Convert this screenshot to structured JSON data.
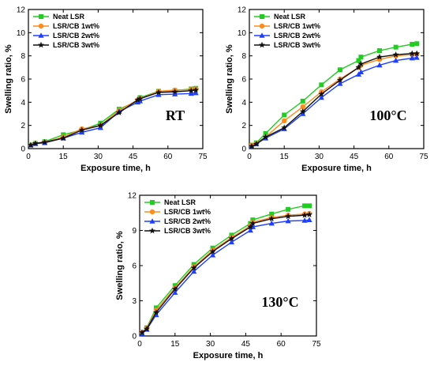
{
  "chart_data": [
    {
      "type": "line",
      "annotation": "RT",
      "xlabel": "Exposure time, h",
      "ylabel": "Swelling ratio, %",
      "xlim": [
        0,
        75
      ],
      "ylim": [
        0,
        12
      ],
      "xticks": [
        "0",
        "15",
        "30",
        "45",
        "60",
        "75"
      ],
      "yticks": [
        "0",
        "2",
        "4",
        "6",
        "8",
        "10",
        "12"
      ],
      "legend": "top-left",
      "series": [
        {
          "name": "Neat LSR",
          "color": "#22cc22",
          "marker": "square",
          "x": [
            1,
            3,
            7,
            15,
            23,
            31,
            39,
            47,
            48,
            56,
            63,
            70,
            72
          ],
          "y": [
            0.3,
            0.45,
            0.6,
            1.2,
            1.6,
            2.2,
            3.4,
            4.1,
            4.4,
            4.95,
            5.0,
            5.15,
            5.2
          ]
        },
        {
          "name": "LSR/CB 1wt%",
          "color": "#ff8c1a",
          "marker": "circle",
          "x": [
            1,
            3,
            7,
            15,
            23,
            31,
            39,
            47,
            48,
            56,
            63,
            70,
            72
          ],
          "y": [
            0.3,
            0.45,
            0.55,
            1.0,
            1.7,
            2.0,
            3.3,
            4.2,
            4.3,
            4.95,
            5.05,
            5.1,
            5.15
          ]
        },
        {
          "name": "LSR/CB 2wt%",
          "color": "#1f3fff",
          "marker": "triangle",
          "x": [
            1,
            3,
            7,
            15,
            23,
            31,
            39,
            47,
            48,
            56,
            63,
            70,
            72
          ],
          "y": [
            0.3,
            0.42,
            0.5,
            0.9,
            1.4,
            1.8,
            3.2,
            4.0,
            4.1,
            4.65,
            4.7,
            4.75,
            4.8
          ]
        },
        {
          "name": "LSR/CB 3wt%",
          "color": "#111111",
          "marker": "star",
          "x": [
            1,
            3,
            7,
            15,
            23,
            31,
            39,
            47,
            48,
            56,
            63,
            70,
            72
          ],
          "y": [
            0.3,
            0.45,
            0.55,
            0.9,
            1.6,
            2.0,
            3.1,
            4.2,
            4.3,
            4.85,
            4.9,
            5.0,
            5.05
          ]
        }
      ]
    },
    {
      "type": "line",
      "annotation": "100°C",
      "xlabel": "Exposure time, h",
      "ylabel": "Swelling ratio, %",
      "xlim": [
        0,
        75
      ],
      "ylim": [
        0,
        12
      ],
      "xticks": [
        "0",
        "15",
        "30",
        "45",
        "60",
        "75"
      ],
      "yticks": [
        "0",
        "2",
        "4",
        "6",
        "8",
        "10",
        "12"
      ],
      "legend": "top-left",
      "series": [
        {
          "name": "Neat LSR",
          "color": "#22cc22",
          "marker": "square",
          "x": [
            1,
            3,
            7,
            15,
            23,
            31,
            39,
            47,
            48,
            56,
            63,
            70,
            72
          ],
          "y": [
            0.3,
            0.5,
            1.3,
            2.9,
            4.1,
            5.5,
            6.8,
            7.6,
            7.9,
            8.45,
            8.75,
            9.0,
            9.05
          ]
        },
        {
          "name": "LSR/CB 1wt%",
          "color": "#ff8c1a",
          "marker": "circle",
          "x": [
            1,
            3,
            7,
            15,
            23,
            31,
            39,
            47,
            48,
            56,
            63,
            70,
            72
          ],
          "y": [
            0.3,
            0.45,
            1.0,
            2.4,
            3.6,
            4.9,
            6.0,
            7.0,
            7.2,
            7.7,
            8.0,
            8.1,
            8.15
          ]
        },
        {
          "name": "LSR/CB 2wt%",
          "color": "#1f3fff",
          "marker": "triangle",
          "x": [
            1,
            3,
            7,
            15,
            23,
            31,
            39,
            47,
            48,
            56,
            63,
            70,
            72
          ],
          "y": [
            0.2,
            0.4,
            0.9,
            1.7,
            3.0,
            4.4,
            5.6,
            6.4,
            6.6,
            7.2,
            7.6,
            7.8,
            7.85
          ]
        },
        {
          "name": "LSR/CB 3wt%",
          "color": "#111111",
          "marker": "star",
          "x": [
            1,
            3,
            7,
            15,
            23,
            31,
            39,
            47,
            48,
            56,
            63,
            70,
            72
          ],
          "y": [
            0.2,
            0.4,
            1.0,
            1.8,
            3.2,
            4.7,
            5.9,
            7.0,
            7.3,
            7.9,
            8.1,
            8.2,
            8.2
          ]
        }
      ]
    },
    {
      "type": "line",
      "annotation": "130°C",
      "xlabel": "Exposure time, h",
      "ylabel": "Swelling ratio, %",
      "xlim": [
        0,
        75
      ],
      "ylim": [
        0,
        12
      ],
      "xticks": [
        "0",
        "15",
        "30",
        "45",
        "60",
        "75"
      ],
      "yticks": [
        "0",
        "3",
        "6",
        "9",
        "12"
      ],
      "legend": "top-left",
      "series": [
        {
          "name": "Neat LSR",
          "color": "#22cc22",
          "marker": "square",
          "x": [
            1,
            3,
            7,
            15,
            23,
            31,
            39,
            47,
            48,
            56,
            63,
            70,
            72
          ],
          "y": [
            0.3,
            0.7,
            2.4,
            4.3,
            6.1,
            7.5,
            8.6,
            9.6,
            9.9,
            10.4,
            10.8,
            11.1,
            11.1
          ]
        },
        {
          "name": "LSR/CB 1wt%",
          "color": "#ff8c1a",
          "marker": "circle",
          "x": [
            1,
            3,
            7,
            15,
            23,
            31,
            39,
            47,
            48,
            56,
            63,
            70,
            72
          ],
          "y": [
            0.3,
            0.65,
            2.2,
            4.1,
            5.9,
            7.3,
            8.4,
            9.4,
            9.7,
            10.1,
            10.3,
            10.4,
            10.45
          ]
        },
        {
          "name": "LSR/CB 2wt%",
          "color": "#1f3fff",
          "marker": "triangle",
          "x": [
            1,
            3,
            7,
            15,
            23,
            31,
            39,
            47,
            48,
            56,
            63,
            70,
            72
          ],
          "y": [
            0.2,
            0.55,
            1.8,
            3.7,
            5.5,
            6.9,
            8.0,
            9.0,
            9.3,
            9.6,
            9.8,
            9.85,
            9.9
          ]
        },
        {
          "name": "LSR/CB 3wt%",
          "color": "#111111",
          "marker": "star",
          "x": [
            1,
            3,
            7,
            15,
            23,
            31,
            39,
            47,
            48,
            56,
            63,
            70,
            72
          ],
          "y": [
            0.3,
            0.6,
            2.0,
            4.0,
            5.8,
            7.2,
            8.3,
            9.3,
            9.6,
            10.0,
            10.2,
            10.3,
            10.35
          ]
        }
      ]
    }
  ]
}
